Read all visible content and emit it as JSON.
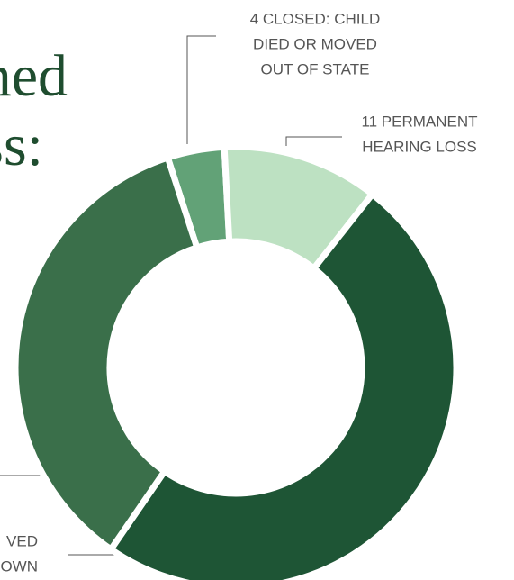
{
  "chart_data": {
    "type": "donut",
    "title_fragments": [
      "ned",
      "ss:"
    ],
    "categories": [
      [
        "4 CLOSED: CHILD",
        "DIED OR MOVED",
        "OUT OF STATE"
      ],
      [
        "11 PERMANENT",
        "HEARING LOSS"
      ],
      [
        "VED",
        "OWN"
      ],
      null
    ],
    "values": [
      4,
      11,
      47,
      34
    ],
    "colors": [
      "#62a277",
      "#bde1c2",
      "#1e5535",
      "#3a6f4a"
    ]
  }
}
